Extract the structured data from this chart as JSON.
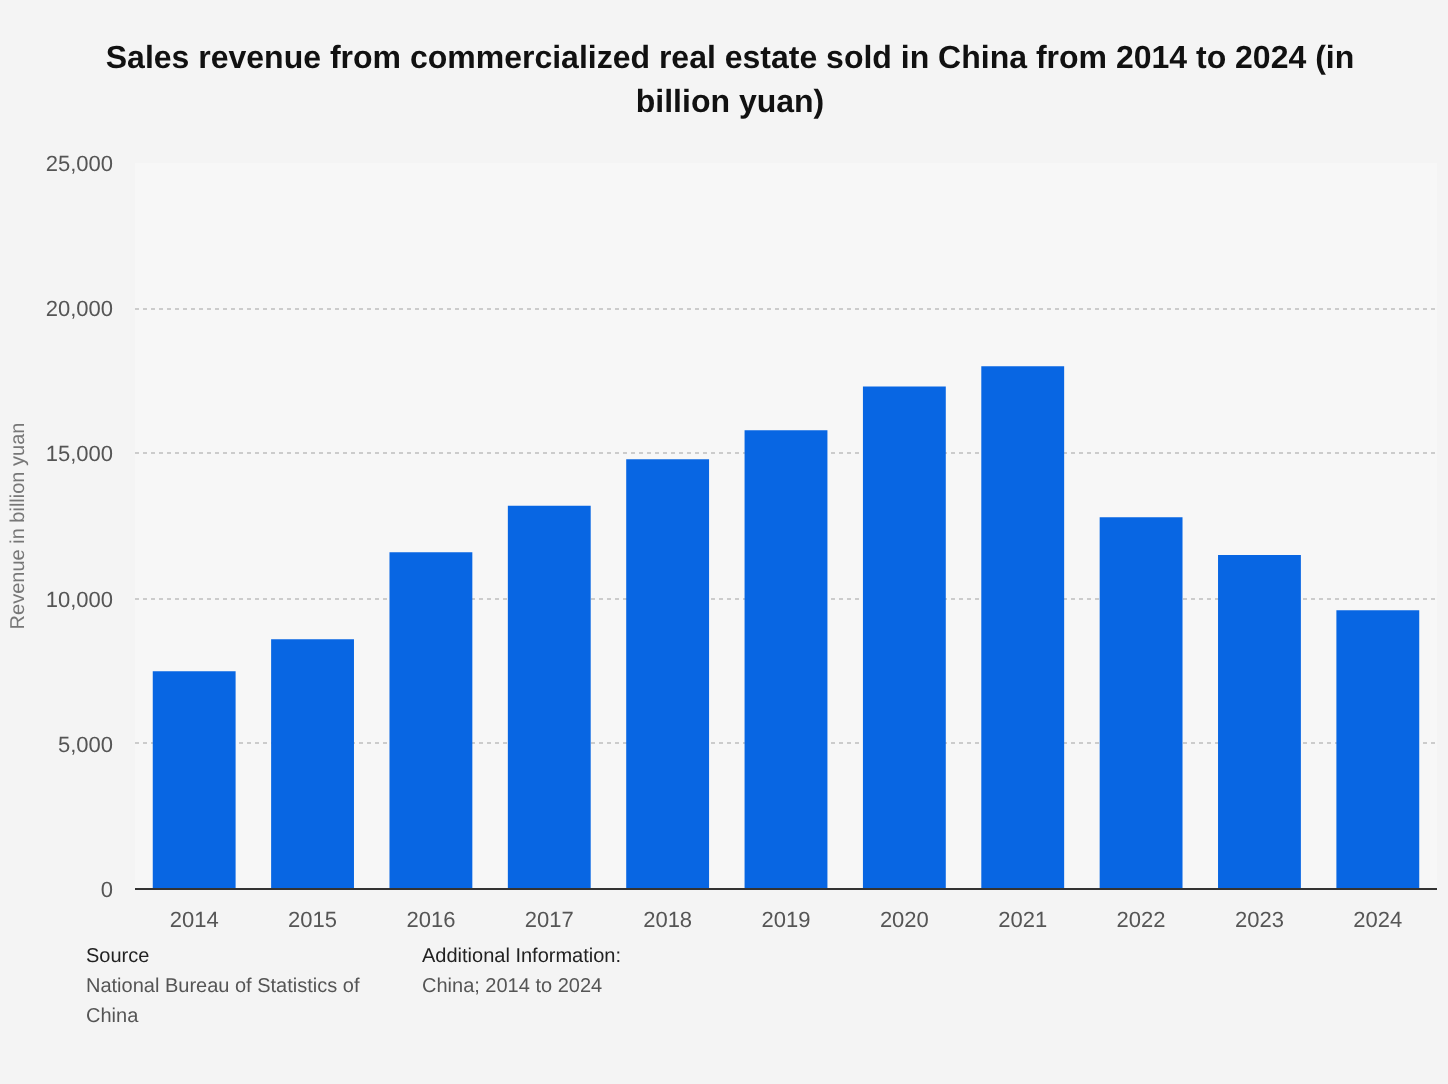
{
  "chart_data": {
    "type": "bar",
    "title": "Sales revenue from commercialized real estate sold in China from 2014 to 2024 (in billion yuan)",
    "ylabel": "Revenue in billion yuan",
    "categories": [
      "2014",
      "2015",
      "2016",
      "2017",
      "2018",
      "2019",
      "2020",
      "2021",
      "2022",
      "2023",
      "2024"
    ],
    "values": [
      7500,
      8600,
      11600,
      13200,
      14800,
      15800,
      17300,
      18000,
      12800,
      11500,
      9600
    ],
    "color": "#0866e3",
    "ylim": [
      0,
      25000
    ],
    "yticks": [
      {
        "value": 0,
        "label": "0"
      },
      {
        "value": 5000,
        "label": "5,000"
      },
      {
        "value": 10000,
        "label": "10,000"
      },
      {
        "value": 15000,
        "label": "15,000"
      },
      {
        "value": 20000,
        "label": "20,000"
      },
      {
        "value": 25000,
        "label": "25,000"
      }
    ],
    "grid": "y",
    "annotations": [
      "Source",
      "National Bureau of Statistics of China",
      "Additional Information:",
      "China; 2014 to 2024"
    ]
  }
}
